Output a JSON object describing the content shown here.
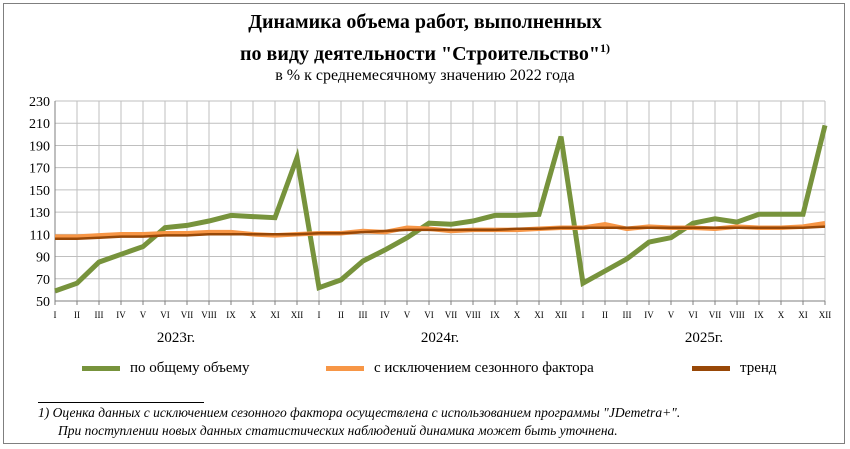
{
  "title_line1": "Динамика объема работ, выполненных",
  "title_line2": "по виду деятельности \"Строительство\"",
  "title_sup": "1)",
  "subtitle": "в % к среднемесячному значению 2022  года",
  "chart_data": {
    "type": "line",
    "categories": [
      "I",
      "II",
      "III",
      "IV",
      "V",
      "VI",
      "VII",
      "VIII",
      "IX",
      "X",
      "XI",
      "XII",
      "I",
      "II",
      "III",
      "IV",
      "V",
      "VI",
      "VII",
      "VIII",
      "IX",
      "X",
      "XI",
      "XII",
      "I",
      "II",
      "III",
      "IV",
      "V",
      "VI",
      "VII",
      "VIII",
      "IX",
      "X",
      "XI",
      "XII"
    ],
    "year_labels": [
      "2023г.",
      "2024г.",
      "2025г."
    ],
    "ylim": [
      50,
      230
    ],
    "yticks": [
      50,
      70,
      90,
      110,
      130,
      150,
      170,
      190,
      210,
      230
    ],
    "grid": true,
    "series": [
      {
        "name": "по общему объему",
        "color": "#77933c",
        "values": [
          59,
          66,
          85,
          92,
          99,
          116,
          118,
          122,
          127,
          126,
          125,
          179,
          62,
          69,
          86,
          96,
          107,
          120,
          119,
          122,
          127,
          127,
          128,
          198,
          66,
          77,
          88,
          103,
          107,
          120,
          124,
          121,
          128,
          128,
          128,
          208
        ]
      },
      {
        "name": "с исключением  сезонного фактора",
        "color": "#f79646",
        "values": [
          108,
          108,
          109,
          110,
          110,
          111,
          111,
          112,
          112,
          110,
          109,
          110,
          111,
          111,
          113,
          112,
          116,
          115,
          113,
          114,
          114,
          114,
          115,
          116,
          116,
          119,
          115,
          117,
          116,
          116,
          115,
          117,
          116,
          116,
          117,
          120
        ]
      },
      {
        "name": "тренд",
        "color": "#984807",
        "values": [
          106,
          106,
          107,
          108,
          108,
          109,
          109,
          110,
          110,
          110,
          110,
          110,
          111,
          111,
          112,
          113,
          114,
          114,
          114,
          114,
          114,
          115,
          115,
          116,
          116,
          116,
          116,
          116,
          116,
          116,
          116,
          116,
          116,
          116,
          116,
          117
        ]
      }
    ]
  },
  "footnote_line1": "1) Оценка данных с исключением сезонного фактора осуществлена с использованием программы \"JDemetra+\".",
  "footnote_line2": "При поступлении новых данных статистических наблюдений динамика может быть уточнена."
}
